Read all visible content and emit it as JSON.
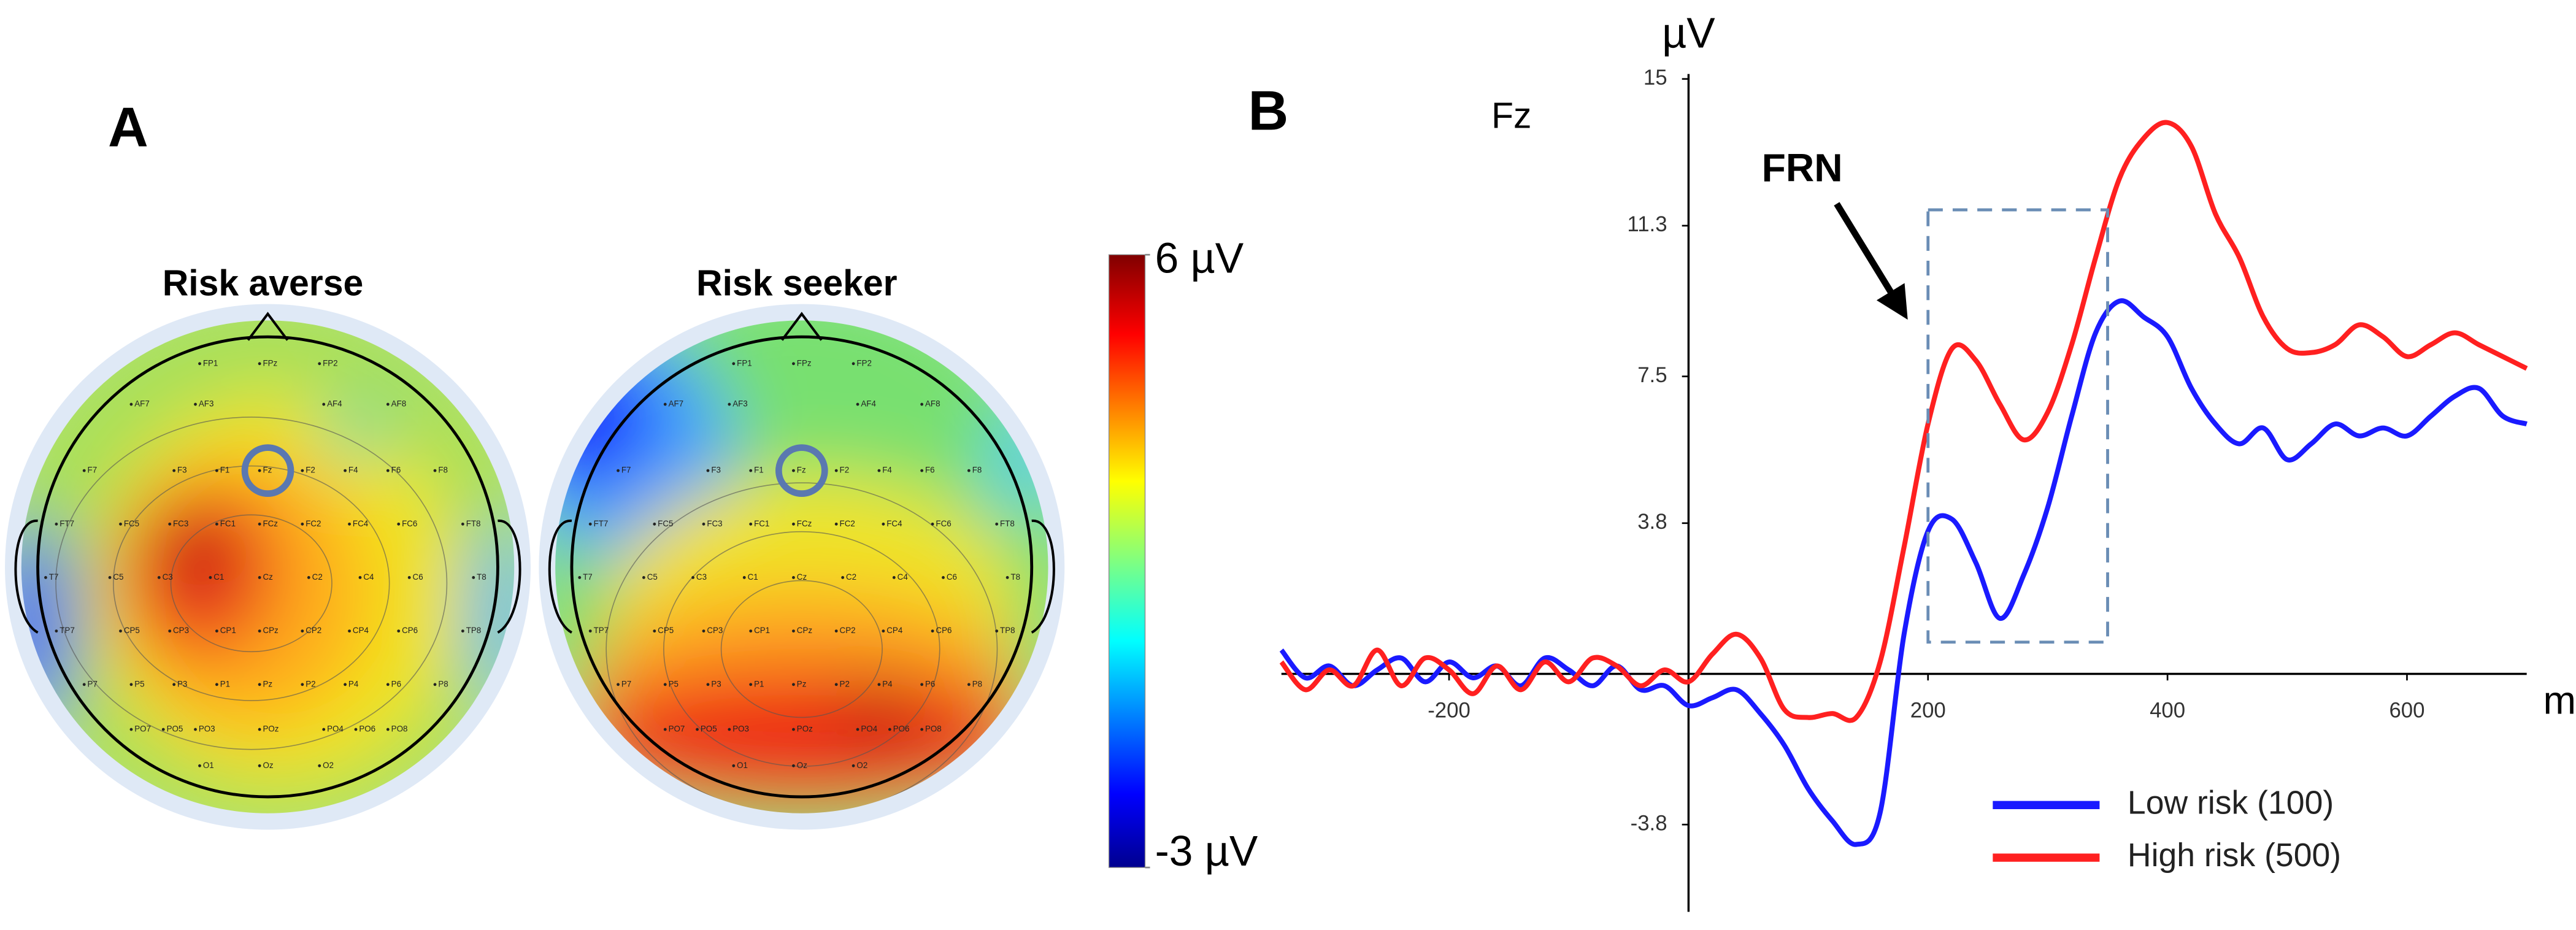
{
  "panel_labels": [
    "A",
    "B"
  ],
  "chart_data": [
    {
      "type": "topomap",
      "title": "Risk averse",
      "electrodes": [
        "FP1",
        "FPz",
        "FP2",
        "AF7",
        "AF3",
        "AF4",
        "AF8",
        "F7",
        "F3",
        "F1",
        "Fz",
        "F2",
        "F4",
        "F6",
        "F8",
        "FT7",
        "FC5",
        "FC3",
        "FC1",
        "FCz",
        "FC2",
        "FC4",
        "FC6",
        "FT8",
        "T7",
        "C5",
        "C3",
        "C1",
        "Cz",
        "C2",
        "C4",
        "C6",
        "T8",
        "TP7",
        "CP5",
        "CP3",
        "CP1",
        "CPz",
        "CP2",
        "CP4",
        "CP6",
        "TP8",
        "P7",
        "P5",
        "P3",
        "P1",
        "Pz",
        "P2",
        "P4",
        "P6",
        "P8",
        "PO7",
        "PO5",
        "PO3",
        "POz",
        "PO4",
        "PO6",
        "PO8",
        "O1",
        "Oz",
        "O2"
      ]
    },
    {
      "type": "topomap",
      "title": "Risk seeker",
      "electrodes": [
        "FP1",
        "FPz",
        "FP2",
        "AF7",
        "AF3",
        "AF4",
        "AF8",
        "F7",
        "F3",
        "F1",
        "Fz",
        "F2",
        "F4",
        "F6",
        "F8",
        "FT7",
        "FC5",
        "FC3",
        "FC1",
        "FCz",
        "FC2",
        "FC4",
        "FC6",
        "FT8",
        "T7",
        "C5",
        "C3",
        "C1",
        "Cz",
        "C2",
        "C4",
        "C6",
        "T8",
        "TP7",
        "CP5",
        "CP3",
        "CP1",
        "CPz",
        "CP2",
        "CP4",
        "CP6",
        "TP8",
        "P7",
        "P5",
        "P3",
        "P1",
        "Pz",
        "P2",
        "P4",
        "P6",
        "P8",
        "PO7",
        "PO5",
        "PO3",
        "POz",
        "PO4",
        "PO6",
        "PO8",
        "O1",
        "Oz",
        "O2"
      ]
    },
    {
      "type": "colorbar",
      "limits": [
        {
          "value": -3,
          "label": "-3 µV"
        },
        {
          "value": 6,
          "label": "6 µV"
        }
      ]
    },
    {
      "type": "line",
      "title": "Fz",
      "x_label": "ms",
      "y_label": "µV",
      "annotation": "FRN",
      "annotation_box": {
        "x": [
          200,
          350
        ],
        "y": [
          0.8,
          11.7
        ]
      },
      "legend": "lower right",
      "xlim": [
        -340,
        700
      ],
      "xticks": [
        -200,
        200,
        400,
        600
      ],
      "ylim": [
        -6,
        15
      ],
      "yticks": [
        15,
        11.3,
        7.5,
        3.8,
        -3.8
      ],
      "x": [
        -340,
        -320,
        -300,
        -280,
        -260,
        -240,
        -220,
        -200,
        -180,
        -160,
        -140,
        -120,
        -100,
        -80,
        -60,
        -40,
        -20,
        0,
        20,
        40,
        60,
        80,
        100,
        120,
        140,
        160,
        180,
        200,
        220,
        240,
        260,
        280,
        300,
        320,
        340,
        360,
        380,
        400,
        420,
        440,
        460,
        480,
        500,
        520,
        540,
        560,
        580,
        600,
        620,
        640,
        660,
        680,
        700
      ],
      "series": [
        {
          "name": "Low risk (100)",
          "color": "#1a1aff",
          "values": [
            0.6,
            -0.1,
            0.2,
            -0.3,
            0.1,
            0.4,
            -0.2,
            0.3,
            -0.1,
            0.2,
            -0.3,
            0.4,
            0.1,
            -0.3,
            0.2,
            -0.4,
            -0.3,
            -0.8,
            -0.6,
            -0.4,
            -1.0,
            -1.8,
            -2.9,
            -3.7,
            -4.3,
            -3.5,
            1.0,
            3.6,
            3.9,
            2.8,
            1.4,
            2.5,
            4.2,
            6.5,
            8.6,
            9.4,
            9.0,
            8.5,
            7.2,
            6.3,
            5.8,
            6.2,
            5.4,
            5.8,
            6.3,
            6.0,
            6.2,
            6.0,
            6.5,
            7.0,
            7.2,
            6.5,
            6.3
          ]
        },
        {
          "name": "High risk (500)",
          "color": "#ff2020",
          "values": [
            0.3,
            -0.4,
            0.1,
            -0.3,
            0.6,
            -0.3,
            0.4,
            0.1,
            -0.5,
            0.2,
            -0.4,
            0.3,
            -0.2,
            0.4,
            0.2,
            -0.3,
            0.1,
            -0.2,
            0.5,
            1.0,
            0.4,
            -0.9,
            -1.1,
            -1.0,
            -1.1,
            0.3,
            3.2,
            6.3,
            8.2,
            7.9,
            6.8,
            5.9,
            6.6,
            8.3,
            10.5,
            12.5,
            13.5,
            13.9,
            13.3,
            11.6,
            10.5,
            9.0,
            8.2,
            8.1,
            8.3,
            8.8,
            8.5,
            8.0,
            8.3,
            8.6,
            8.3,
            8.0,
            7.7
          ]
        }
      ]
    }
  ]
}
